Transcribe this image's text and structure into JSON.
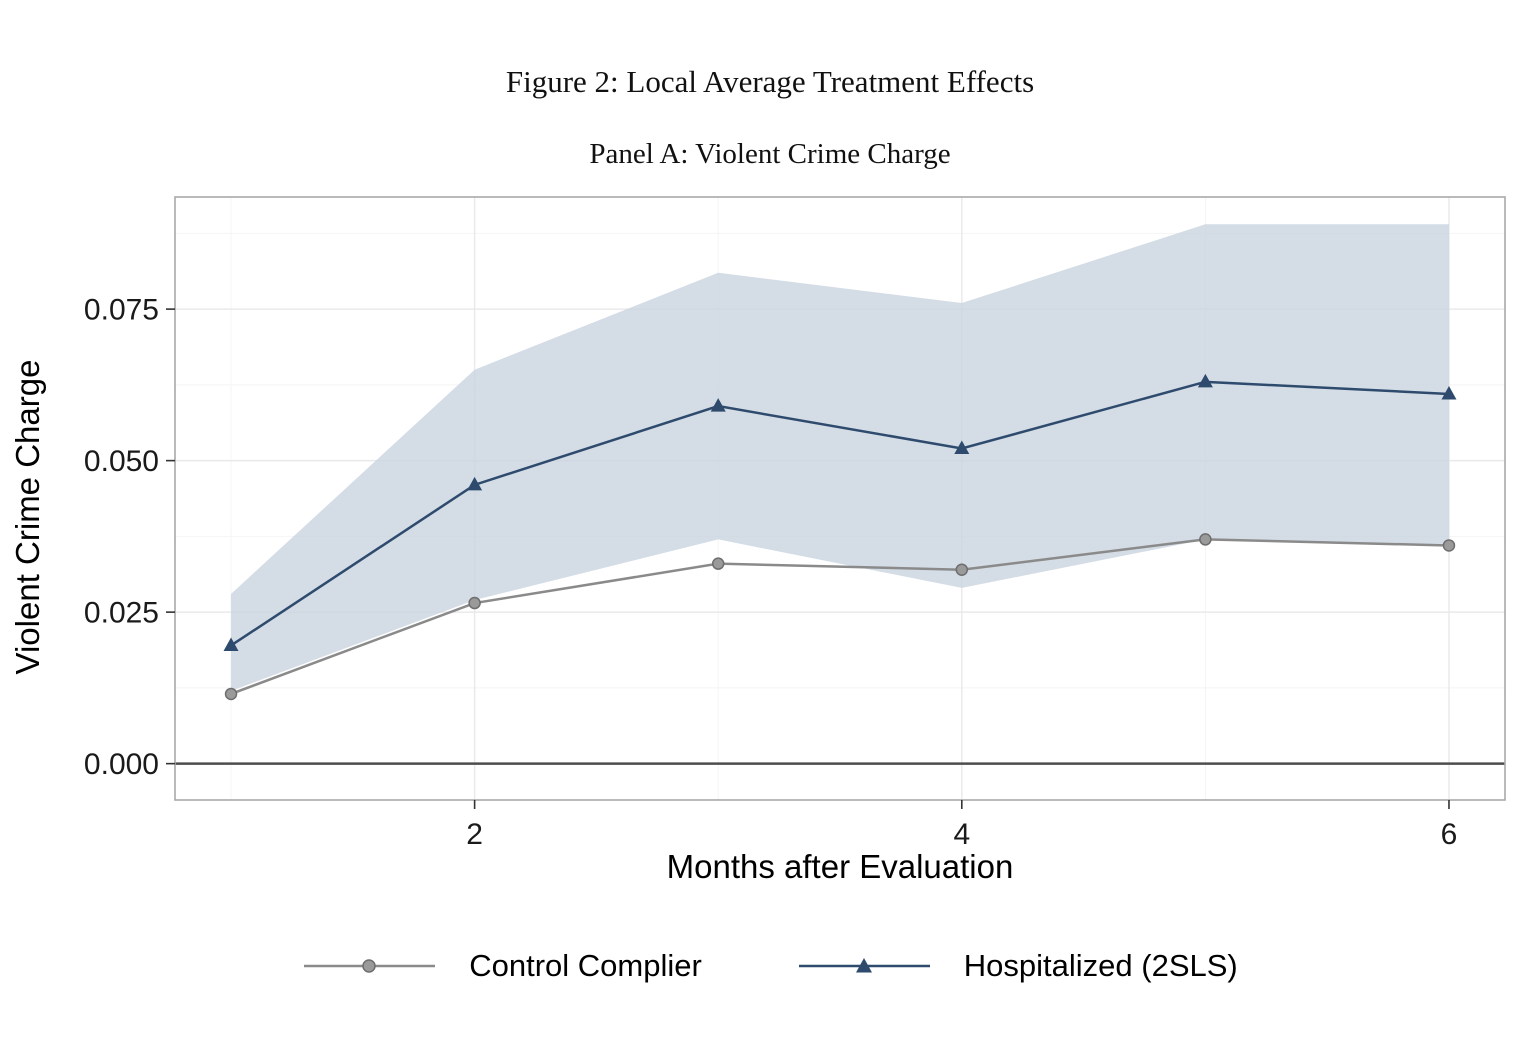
{
  "chart_data": {
    "type": "line",
    "title": "Figure 2: Local Average Treatment Effects",
    "subtitle": "Panel A: Violent Crime Charge",
    "xlabel": "Months after Evaluation",
    "ylabel": "Violent Crime Charge",
    "x": [
      1,
      2,
      3,
      4,
      5,
      6
    ],
    "xticks": [
      2,
      4,
      6
    ],
    "xtick_labels": [
      "2",
      "4",
      "6"
    ],
    "yticks": [
      0.0,
      0.025,
      0.05,
      0.075
    ],
    "ytick_labels": [
      "0.000",
      "0.025",
      "0.050",
      "0.075"
    ],
    "xlim": [
      0.77,
      6.23
    ],
    "ylim": [
      -0.006,
      0.0935
    ],
    "grid": true,
    "legend_position": "bottom",
    "zero_line": 0,
    "series": [
      {
        "name": "Control Complier",
        "marker": "circle",
        "color": "#8a8a8a",
        "marker_fill": "#9a9a9a",
        "values": [
          0.0115,
          0.0265,
          0.033,
          0.032,
          0.037,
          0.036
        ]
      },
      {
        "name": "Hospitalized (2SLS)",
        "marker": "triangle",
        "color": "#2e4b6e",
        "marker_fill": "#2e4b6e",
        "values": [
          0.0195,
          0.046,
          0.059,
          0.052,
          0.063,
          0.061
        ]
      }
    ],
    "ribbon": {
      "for_series": "Hospitalized (2SLS)",
      "color": "#c9d3e0",
      "lower": [
        0.012,
        0.027,
        0.037,
        0.029,
        0.037,
        0.036
      ],
      "upper": [
        0.028,
        0.065,
        0.081,
        0.076,
        0.089,
        0.089
      ]
    },
    "colors": {
      "panel_border": "#a9a9a9",
      "grid_major": "#e9e9e9",
      "grid_minor": "#f4f4f4",
      "zero_line": "#4d4d4d",
      "tick": "#333333",
      "tick_label": "#1a1a1a"
    }
  }
}
